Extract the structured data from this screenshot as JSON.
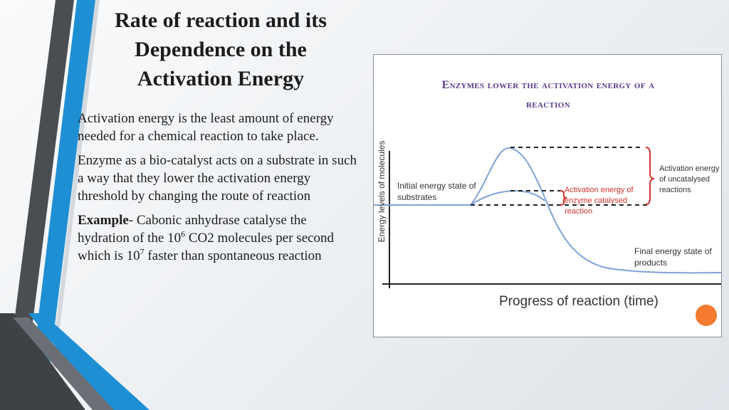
{
  "slide": {
    "title": "Rate of reaction and its Dependence on the Activation Energy",
    "paragraphs": {
      "p1": "Activation energy is the least amount of energy needed for a chemical reaction to take place.",
      "p2": "Enzyme as a bio-catalyst acts on a substrate in such a way that they lower the activation energy threshold by changing the route of reaction",
      "p3": {
        "bold": "Example",
        "t1": "- Cabonic anhydrase catalyse the hydration of the 10",
        "sup1": "6",
        "t2": " CO2 molecules per second which is 10",
        "sup2": "7",
        "t3": " faster than spontaneous reaction"
      }
    }
  },
  "figure": {
    "title_line1": "Enzymes lower the activation energy of a",
    "title_line2": "reaction",
    "y_axis_label": "Energy levels of molecules",
    "x_axis_label": "Progress of reaction (time)",
    "label_initial": "Initial energy state of substrates",
    "label_uncatalysed": "Activation energy of uncatalysed reactions",
    "label_catalysed": "Activation energy of enzyme catalysed reaction",
    "label_final": "Final energy state of products",
    "colors": {
      "curve": "#7fa3d6",
      "red_text": "#d0332e",
      "title": "#5a3c8c",
      "accent_dot": "#f47b2f"
    }
  }
}
